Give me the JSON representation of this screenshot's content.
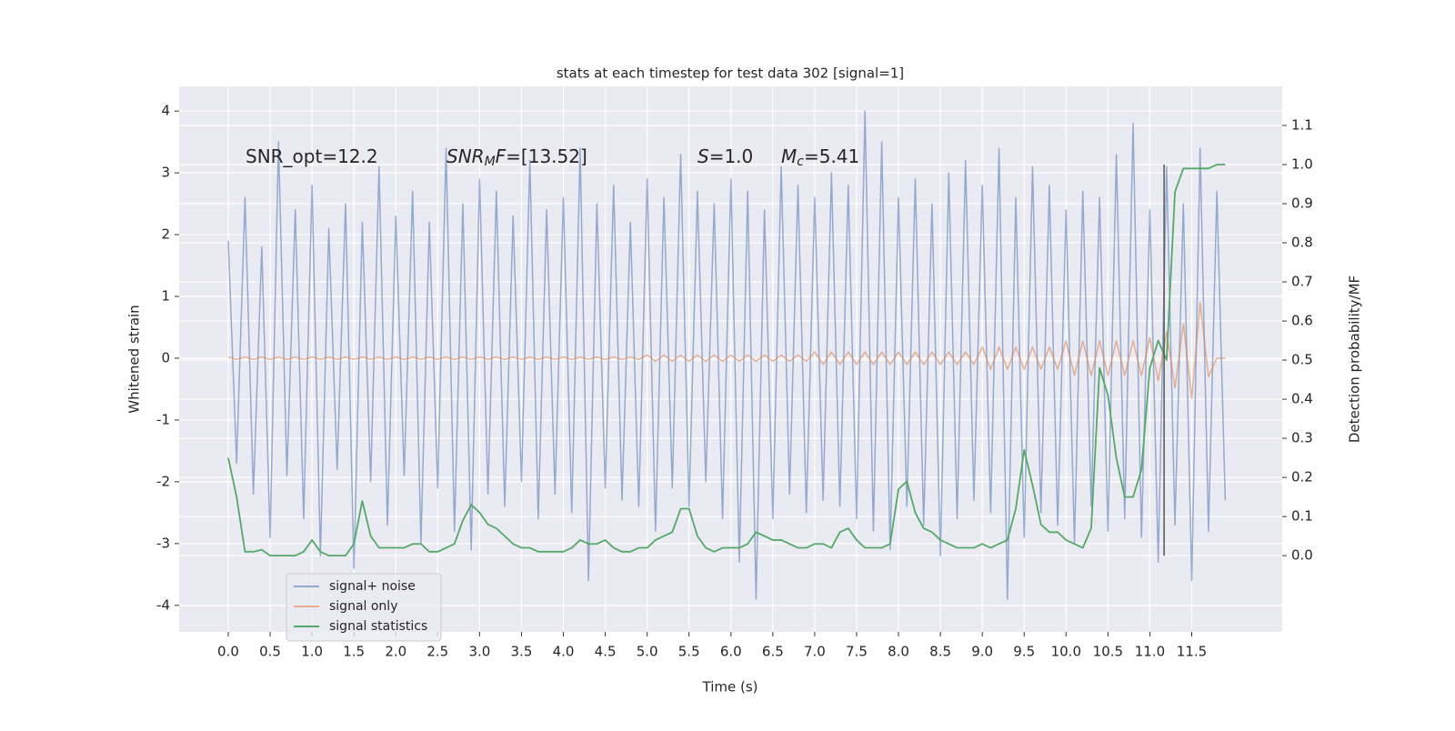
{
  "chart_data": {
    "type": "line",
    "title": "stats at each timestep for test data 302 [signal=1]",
    "xlabel": "Time (s)",
    "ylabel": "Whitened strain",
    "y2label": "Detection probability/MF",
    "x": [
      0,
      0.1,
      0.2,
      0.3,
      0.4,
      0.5,
      0.6,
      0.7,
      0.8,
      0.9,
      1,
      1.1,
      1.2,
      1.3,
      1.4,
      1.5,
      1.6,
      1.7,
      1.8,
      1.9,
      2,
      2.1,
      2.2,
      2.3,
      2.4,
      2.5,
      2.6,
      2.7,
      2.8,
      2.9,
      3,
      3.1,
      3.2,
      3.3,
      3.4,
      3.5,
      3.6,
      3.7,
      3.8,
      3.9,
      4,
      4.1,
      4.2,
      4.3,
      4.4,
      4.5,
      4.6,
      4.7,
      4.8,
      4.9,
      5,
      5.1,
      5.2,
      5.3,
      5.4,
      5.5,
      5.6,
      5.7,
      5.8,
      5.9,
      6,
      6.1,
      6.2,
      6.3,
      6.4,
      6.5,
      6.6,
      6.7,
      6.8,
      6.9,
      7,
      7.1,
      7.2,
      7.3,
      7.4,
      7.5,
      7.6,
      7.7,
      7.8,
      7.9,
      8,
      8.1,
      8.2,
      8.3,
      8.4,
      8.5,
      8.6,
      8.7,
      8.8,
      8.9,
      9,
      9.1,
      9.2,
      9.3,
      9.4,
      9.5,
      9.6,
      9.7,
      9.8,
      9.9,
      10,
      10.1,
      10.2,
      10.3,
      10.4,
      10.5,
      10.6,
      10.7,
      10.8,
      10.9,
      11,
      11.1,
      11.2,
      11.3,
      11.4,
      11.5,
      11.6,
      11.7,
      11.8,
      11.9
    ],
    "series": [
      {
        "name": "signal+ noise",
        "color": "#4c72b0",
        "values": [
          1.9,
          -1.7,
          2.6,
          -2.2,
          1.8,
          -2.9,
          3.5,
          -1.9,
          2.4,
          -2.6,
          2.8,
          -3.2,
          2.1,
          -1.8,
          2.5,
          -3.4,
          2.2,
          -2.0,
          3.1,
          -2.7,
          2.3,
          -1.9,
          2.7,
          -3.0,
          2.2,
          -2.1,
          3.4,
          -2.8,
          2.5,
          -3.1,
          2.9,
          -2.2,
          2.7,
          -2.4,
          2.3,
          -2.0,
          3.2,
          -2.6,
          2.4,
          -2.2,
          2.6,
          -2.5,
          3.4,
          -3.6,
          2.5,
          -2.1,
          2.8,
          -2.3,
          2.2,
          -2.4,
          2.9,
          -2.8,
          2.6,
          -2.1,
          3.3,
          -2.4,
          2.7,
          -2.0,
          2.5,
          -2.6,
          2.9,
          -3.3,
          2.7,
          -3.9,
          2.4,
          -2.6,
          3.1,
          -2.2,
          2.8,
          -2.5,
          2.6,
          -2.3,
          3.0,
          -2.4,
          2.8,
          -2.6,
          4.0,
          -2.8,
          3.5,
          -3.1,
          2.6,
          -2.4,
          2.9,
          -2.7,
          2.5,
          -3.2,
          3.0,
          -2.6,
          3.2,
          -2.3,
          2.8,
          -2.5,
          3.4,
          -3.9,
          2.6,
          -2.9,
          3.1,
          -2.5,
          2.8,
          -2.7,
          2.4,
          -3.0,
          2.7,
          -2.4,
          2.6,
          -2.8,
          3.3,
          -2.6,
          3.8,
          -2.9,
          2.4,
          -3.3,
          3.1,
          -2.7,
          2.5,
          -3.6,
          3.4,
          -2.8,
          2.7,
          -2.3
        ]
      },
      {
        "name": "signal only",
        "color": "#dd8452",
        "values": [
          0.02,
          -0.02,
          0.02,
          -0.02,
          0.02,
          -0.02,
          0.02,
          -0.02,
          0.02,
          -0.02,
          0.02,
          -0.02,
          0.02,
          -0.02,
          0.02,
          -0.02,
          0.02,
          -0.02,
          0.02,
          -0.02,
          0.02,
          -0.02,
          0.02,
          -0.02,
          0.02,
          -0.02,
          0.02,
          -0.02,
          0.02,
          -0.02,
          0.02,
          -0.02,
          0.02,
          -0.02,
          0.02,
          -0.02,
          0.02,
          -0.02,
          0.02,
          -0.02,
          0.02,
          -0.02,
          0.02,
          -0.02,
          0.02,
          -0.02,
          0.02,
          -0.02,
          0.02,
          -0.02,
          0.05,
          -0.05,
          0.05,
          -0.05,
          0.05,
          -0.05,
          0.05,
          -0.05,
          0.05,
          -0.05,
          0.05,
          -0.05,
          0.05,
          -0.05,
          0.05,
          -0.05,
          0.05,
          -0.05,
          0.05,
          -0.05,
          0.1,
          -0.1,
          0.1,
          -0.1,
          0.1,
          -0.1,
          0.1,
          -0.1,
          0.1,
          -0.1,
          0.1,
          -0.1,
          0.1,
          -0.1,
          0.1,
          -0.1,
          0.1,
          -0.1,
          0.1,
          -0.1,
          0.18,
          -0.18,
          0.18,
          -0.18,
          0.18,
          -0.18,
          0.18,
          -0.18,
          0.18,
          -0.18,
          0.28,
          -0.28,
          0.28,
          -0.28,
          0.28,
          -0.28,
          0.28,
          -0.28,
          0.28,
          -0.28,
          0.33,
          -0.36,
          0.42,
          -0.48,
          0.56,
          -0.65,
          0.9,
          -0.3,
          0,
          0
        ]
      },
      {
        "name": "signal statistics",
        "color": "#55a868",
        "axis": "y2",
        "values": [
          0.25,
          0.15,
          0.01,
          0.01,
          0.015,
          0,
          0,
          0,
          0,
          0.01,
          0.04,
          0.01,
          0,
          0,
          0,
          0.03,
          0.14,
          0.05,
          0.02,
          0.02,
          0.02,
          0.02,
          0.03,
          0.03,
          0.01,
          0.01,
          0.02,
          0.03,
          0.09,
          0.13,
          0.11,
          0.08,
          0.07,
          0.05,
          0.03,
          0.02,
          0.02,
          0.01,
          0.01,
          0.01,
          0.01,
          0.02,
          0.04,
          0.03,
          0.03,
          0.04,
          0.02,
          0.01,
          0.01,
          0.02,
          0.02,
          0.04,
          0.05,
          0.06,
          0.12,
          0.12,
          0.05,
          0.02,
          0.01,
          0.02,
          0.02,
          0.02,
          0.03,
          0.06,
          0.05,
          0.04,
          0.04,
          0.03,
          0.02,
          0.02,
          0.03,
          0.03,
          0.02,
          0.06,
          0.07,
          0.04,
          0.02,
          0.02,
          0.02,
          0.03,
          0.17,
          0.19,
          0.11,
          0.07,
          0.06,
          0.04,
          0.03,
          0.02,
          0.02,
          0.02,
          0.03,
          0.02,
          0.03,
          0.04,
          0.12,
          0.27,
          0.18,
          0.08,
          0.06,
          0.06,
          0.04,
          0.03,
          0.02,
          0.07,
          0.48,
          0.41,
          0.25,
          0.15,
          0.15,
          0.22,
          0.48,
          0.55,
          0.5,
          0.93,
          0.99,
          0.99,
          0.99,
          0.99,
          1.0,
          1.0
        ]
      }
    ],
    "vline": {
      "x": 11.17,
      "y2": [
        0,
        1.0
      ],
      "color": "#555555"
    },
    "annotations": [
      [
        {
          "text": "SNR_opt=12.2",
          "style": "plain"
        }
      ],
      [
        {
          "text": "SNR",
          "style": "italic"
        },
        {
          "text": "M",
          "style": "sub"
        },
        {
          "text": "F",
          "style": "italic"
        },
        {
          "text": "=[13.52]",
          "style": "plain"
        }
      ],
      [
        {
          "text": "S",
          "style": "italic"
        },
        {
          "text": "=1.0",
          "style": "plain"
        }
      ],
      [
        {
          "text": "M",
          "style": "italic"
        },
        {
          "text": "c",
          "style": "sub"
        },
        {
          "text": "=5.41",
          "style": "plain"
        }
      ]
    ],
    "xlim": [
      -0.586,
      12.58
    ],
    "ylim": [
      -4.43,
      4.4
    ],
    "y2lim": [
      -0.195,
      1.2
    ],
    "xticks": [
      {
        "value": 0,
        "label": "0.0"
      },
      {
        "value": 0.5,
        "label": "0.5"
      },
      {
        "value": 1,
        "label": "1.0"
      },
      {
        "value": 1.5,
        "label": "1.5"
      },
      {
        "value": 2,
        "label": "2.0"
      },
      {
        "value": 2.5,
        "label": "2.5"
      },
      {
        "value": 3,
        "label": "3.0"
      },
      {
        "value": 3.5,
        "label": "3.5"
      },
      {
        "value": 4,
        "label": "4.0"
      },
      {
        "value": 4.5,
        "label": "4.5"
      },
      {
        "value": 5,
        "label": "5.0"
      },
      {
        "value": 5.5,
        "label": "5.5"
      },
      {
        "value": 6,
        "label": "6.0"
      },
      {
        "value": 6.5,
        "label": "6.5"
      },
      {
        "value": 7,
        "label": "7.0"
      },
      {
        "value": 7.5,
        "label": "7.5"
      },
      {
        "value": 8,
        "label": "8.0"
      },
      {
        "value": 8.5,
        "label": "8.5"
      },
      {
        "value": 9,
        "label": "9.0"
      },
      {
        "value": 9.5,
        "label": "9.5"
      },
      {
        "value": 10,
        "label": "10.0"
      },
      {
        "value": 10.5,
        "label": "10.5"
      },
      {
        "value": 11,
        "label": "11.0"
      },
      {
        "value": 11.5,
        "label": "11.5"
      }
    ],
    "yticks": [
      -4,
      -3,
      -2,
      -1,
      0,
      1,
      2,
      3,
      4
    ],
    "y2ticks": [
      {
        "value": 0,
        "label": "0.0"
      },
      {
        "value": 0.1,
        "label": "0.1"
      },
      {
        "value": 0.2,
        "label": "0.2"
      },
      {
        "value": 0.3,
        "label": "0.3"
      },
      {
        "value": 0.4,
        "label": "0.4"
      },
      {
        "value": 0.5,
        "label": "0.5"
      },
      {
        "value": 0.6,
        "label": "0.6"
      },
      {
        "value": 0.7,
        "label": "0.7"
      },
      {
        "value": 0.8,
        "label": "0.8"
      },
      {
        "value": 0.9,
        "label": "0.9"
      },
      {
        "value": 1.0,
        "label": "1.0"
      },
      {
        "value": 1.1,
        "label": "1.1"
      }
    ],
    "grid": true,
    "legend": "lower left"
  }
}
